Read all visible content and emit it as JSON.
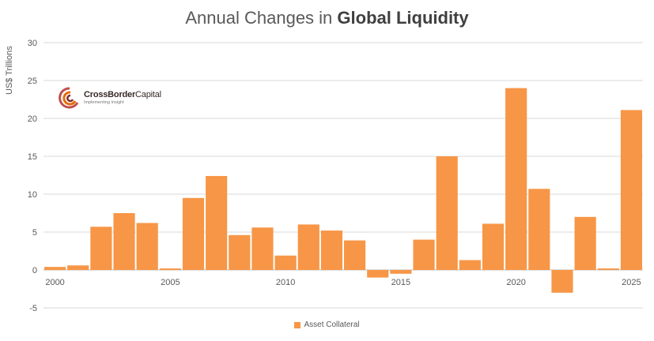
{
  "title": {
    "prefix": "Annual Changes in ",
    "emphasis": "Global Liquidity"
  },
  "logo": {
    "name_bold": "CrossBorder",
    "name_light": "Capital",
    "tagline": "Implementing Insight"
  },
  "colors": {
    "bar": "#F79646",
    "grid": "#D9D9D9",
    "axis_text": "#595959"
  },
  "chart_data": {
    "type": "bar",
    "title": "Annual Changes in Global Liquidity",
    "xlabel": "",
    "ylabel": "US$ Trillions",
    "ylim": [
      -5,
      30
    ],
    "yticks": [
      30,
      25,
      20,
      15,
      10,
      5,
      0,
      -5
    ],
    "x_tick_labels": [
      "2000",
      "2005",
      "2010",
      "2015",
      "2020",
      "2025"
    ],
    "grid": true,
    "legend_position": "bottom",
    "categories": [
      "2000",
      "2001",
      "2002",
      "2003",
      "2004",
      "2005",
      "2006",
      "2007",
      "2008",
      "2009",
      "2010",
      "2011",
      "2012",
      "2013",
      "2014",
      "2015",
      "2016",
      "2017",
      "2018",
      "2019",
      "2020",
      "2021",
      "2022",
      "2023",
      "2024",
      "2025"
    ],
    "series": [
      {
        "name": "Asset Collateral",
        "values": [
          0.4,
          0.6,
          5.7,
          7.5,
          6.2,
          0.2,
          9.5,
          12.4,
          4.6,
          5.6,
          1.9,
          6.0,
          5.2,
          3.9,
          -1.0,
          -0.5,
          4.0,
          15.0,
          1.3,
          6.1,
          24.0,
          10.7,
          -3.0,
          7.0,
          0.2,
          21.1
        ]
      }
    ]
  }
}
